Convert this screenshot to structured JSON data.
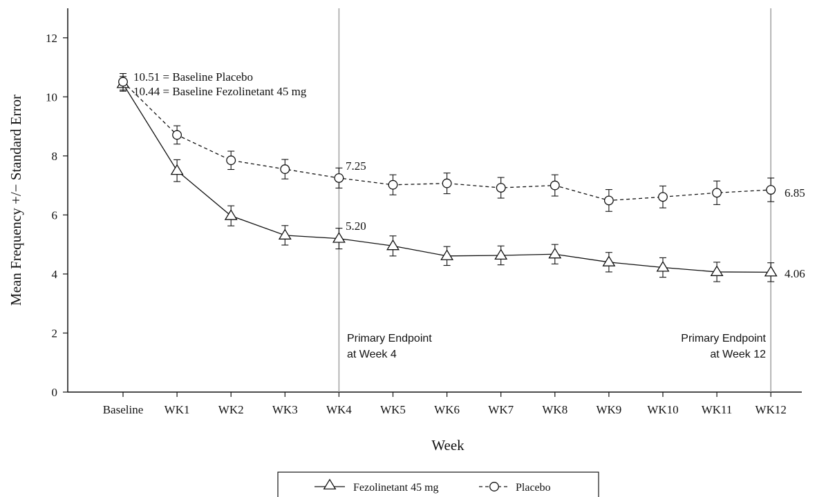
{
  "chart_data": {
    "type": "line",
    "xlabel": "Week",
    "ylabel": "Mean Frequency +/− Standard Error",
    "ylim": [
      0,
      13
    ],
    "yticks": [
      "0",
      "2",
      "4",
      "6",
      "8",
      "10",
      "12"
    ],
    "categories": [
      "Baseline",
      "WK1",
      "WK2",
      "WK3",
      "WK4",
      "WK5",
      "WK6",
      "WK7",
      "WK8",
      "WK9",
      "WK10",
      "WK11",
      "WK12"
    ],
    "series": [
      {
        "name": "Fezolinetant 45 mg",
        "marker": "triangle",
        "line_style": "solid",
        "values": [
          10.44,
          7.5,
          5.97,
          5.31,
          5.2,
          4.95,
          4.61,
          4.63,
          4.67,
          4.4,
          4.22,
          4.07,
          4.06
        ],
        "errors": [
          0.25,
          0.37,
          0.34,
          0.33,
          0.35,
          0.34,
          0.32,
          0.32,
          0.33,
          0.33,
          0.33,
          0.33,
          0.32
        ]
      },
      {
        "name": "Placebo",
        "marker": "circle",
        "line_style": "dashed",
        "values": [
          10.51,
          8.71,
          7.85,
          7.55,
          7.25,
          7.02,
          7.07,
          6.92,
          7.0,
          6.49,
          6.61,
          6.75,
          6.85
        ],
        "errors": [
          0.28,
          0.31,
          0.31,
          0.33,
          0.34,
          0.34,
          0.35,
          0.35,
          0.36,
          0.37,
          0.37,
          0.4,
          0.4
        ]
      }
    ],
    "annotations": {
      "baseline_placebo": "10.51 = Baseline Placebo",
      "baseline_fezo": "10.44 = Baseline Fezolinetant 45 mg",
      "wk4_placebo": "7.25",
      "wk4_fezo": "5.20",
      "wk12_placebo": "6.85",
      "wk12_fezo": "4.06",
      "endpoint_wk4": [
        "Primary Endpoint",
        "at Week 4"
      ],
      "endpoint_wk12": [
        "Primary Endpoint",
        "at Week 12"
      ]
    },
    "reference_lines": [
      "WK4",
      "WK12"
    ],
    "grid": false,
    "legend_position": "bottom-center",
    "colors": {
      "line": "#111111",
      "reference_line": "#a0a0a0",
      "background": "#ffffff"
    }
  }
}
